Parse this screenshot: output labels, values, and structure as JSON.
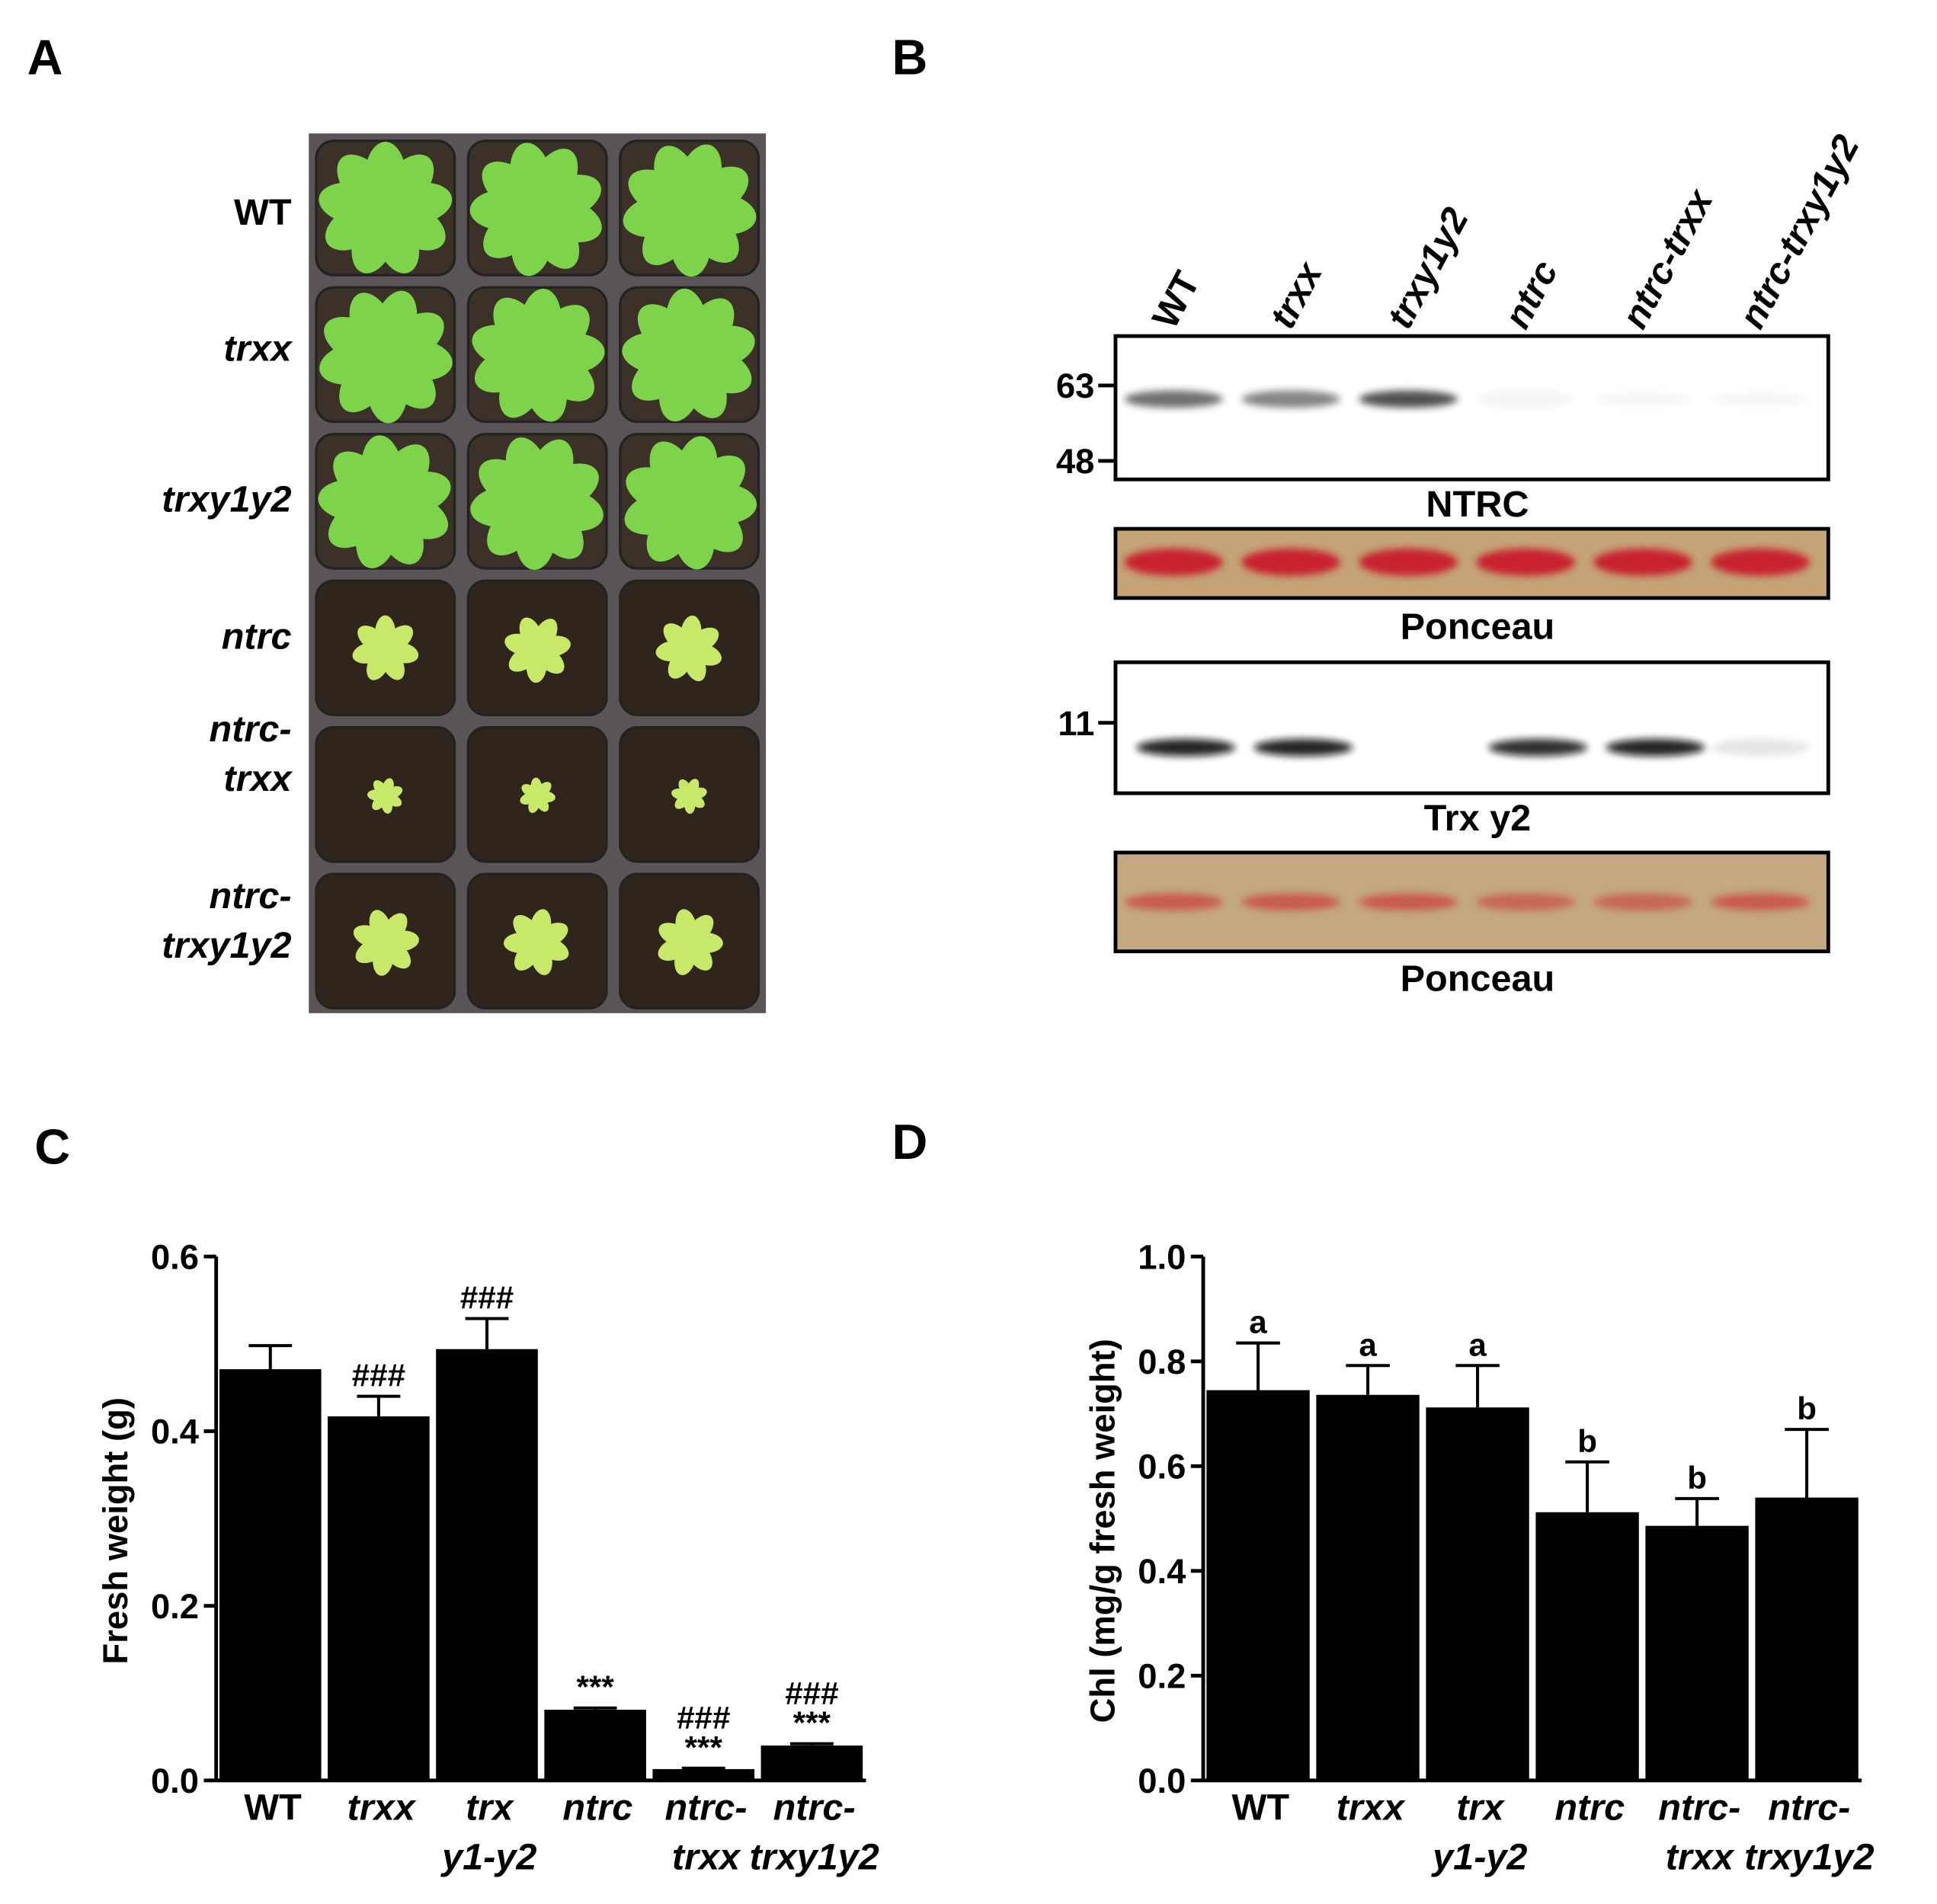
{
  "panel_labels": [
    "A",
    "B",
    "C",
    "D"
  ],
  "panel_a": {
    "genotypes": [
      "WT",
      "trxx",
      "trxy1y2",
      "ntrc",
      "ntrc-\ntrxx",
      "ntrc-\ntrxy1y2"
    ]
  },
  "panel_b": {
    "lanes": [
      "WT",
      "trxx",
      "trxy1y2",
      "ntrc",
      "ntrc-trxx",
      "ntrc-trxy1y2"
    ],
    "ntrc_markers": [
      63,
      48
    ],
    "trx_markers": [
      11
    ],
    "blot_labels": [
      "NTRC",
      "Ponceau",
      "Trx y2",
      "Ponceau"
    ]
  },
  "chart_data": [
    {
      "type": "bar",
      "y_label": "Fresh weight (g)",
      "categories": [
        "WT",
        "trxx",
        "trx\ny1-y2",
        "ntrc",
        "ntrc-\ntrxx",
        "ntrc-\ntrxy1y2"
      ],
      "values": [
        0.471,
        0.417,
        0.494,
        0.081,
        0.013,
        0.04
      ],
      "errors": [
        0.027,
        0.023,
        0.035,
        0.002,
        0.001,
        0.002
      ],
      "annotations": [
        null,
        "###",
        "###",
        "***",
        "###\n***",
        "###\n***"
      ],
      "color": "#000000",
      "ylim": [
        0,
        0.6
      ],
      "yticks": [
        {
          "value": 0,
          "label": "0.0"
        },
        0.2,
        0.4,
        0.6
      ]
    },
    {
      "type": "bar",
      "y_label": "Chl (mg/g fresh weight)",
      "categories": [
        "WT",
        "trxx",
        "trx\ny1-y2",
        "ntrc",
        "ntrc-\ntrxx",
        "ntrc-\ntrxy1y2"
      ],
      "values": [
        0.745,
        0.736,
        0.712,
        0.512,
        0.486,
        0.54
      ],
      "errors": [
        0.09,
        0.056,
        0.08,
        0.096,
        0.052,
        0.13
      ],
      "annotations": [
        "a",
        "a",
        "a",
        "b",
        "b",
        "b"
      ],
      "color": "#000000",
      "ylim": [
        0,
        1.0
      ],
      "yticks": [
        {
          "value": 0,
          "label": "0.0"
        },
        0.2,
        0.4,
        0.6,
        0.8,
        {
          "value": 1.0,
          "label": "1.0"
        }
      ]
    }
  ]
}
